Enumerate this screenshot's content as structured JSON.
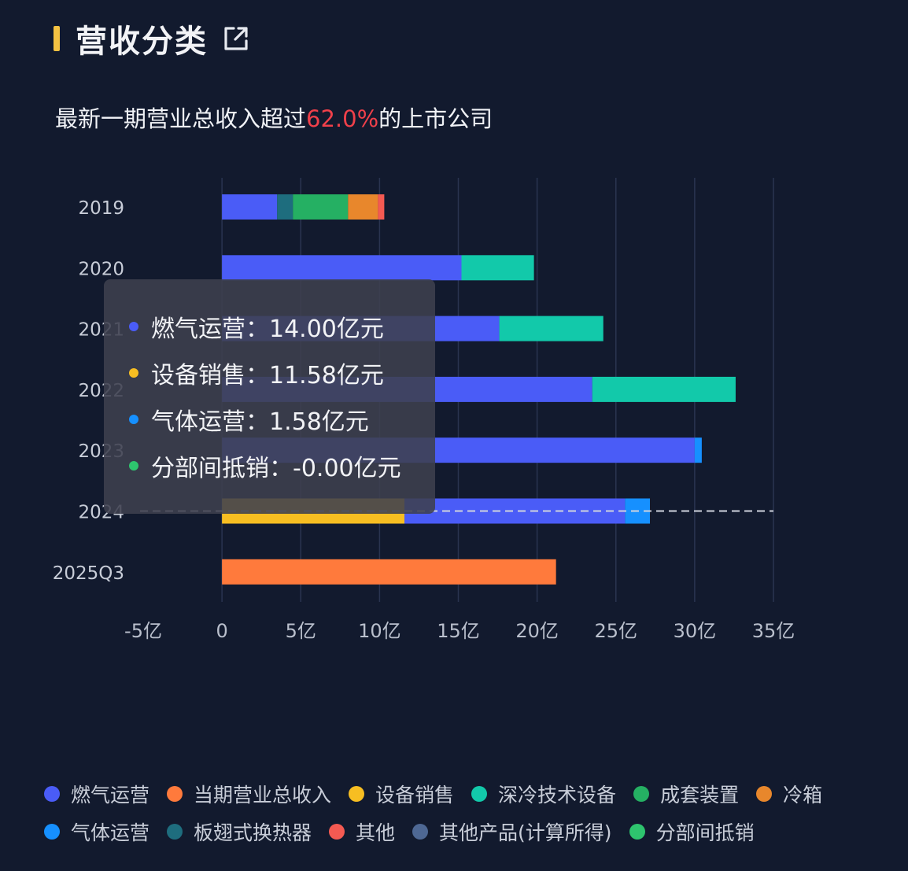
{
  "header": {
    "title": "营收分类"
  },
  "subtitle": {
    "prefix": "最新一期营业总收入超过",
    "highlight": "62.0%",
    "suffix": "的上市公司"
  },
  "colors": {
    "燃气运营": "#4a5cf7",
    "当期营业总收入": "#ff7a3c",
    "设备销售": "#f7be22",
    "深冷技术设备": "#12c9aa",
    "成套装置": "#25b063",
    "冷箱": "#e8872c",
    "气体运营": "#1690ff",
    "板翅式换热器": "#1e6d7e",
    "其他": "#f45a52",
    "其他产品(计算所得)": "#4e6894",
    "分部间抵销": "#2ec46e"
  },
  "chart_data": {
    "type": "bar",
    "orientation": "horizontal",
    "stacked": true,
    "categories": [
      "2019",
      "2020",
      "2021",
      "2022",
      "2023",
      "2024",
      "2025Q3"
    ],
    "xlim": [
      -5,
      35
    ],
    "x_ticks": [
      -5,
      0,
      5,
      10,
      15,
      20,
      25,
      30,
      35
    ],
    "x_tick_labels": [
      "-5亿",
      "0",
      "5亿",
      "10亿",
      "15亿",
      "20亿",
      "25亿",
      "30亿",
      "35亿"
    ],
    "series": [
      {
        "name": "设备销售",
        "values": [
          0,
          0,
          0,
          0,
          0,
          11.58,
          0
        ]
      },
      {
        "name": "燃气运营",
        "values": [
          3.5,
          15.2,
          17.6,
          23.5,
          30.0,
          14.0,
          0
        ]
      },
      {
        "name": "深冷技术设备",
        "values": [
          0,
          4.6,
          6.6,
          9.1,
          0,
          0,
          0
        ]
      },
      {
        "name": "板翅式换热器",
        "values": [
          1.0,
          0,
          0,
          0,
          0,
          0,
          0
        ]
      },
      {
        "name": "成套装置",
        "values": [
          3.5,
          0,
          0,
          0,
          0,
          0,
          0
        ]
      },
      {
        "name": "冷箱",
        "values": [
          1.9,
          0,
          0,
          0,
          0,
          0,
          0
        ]
      },
      {
        "name": "其他",
        "values": [
          0.4,
          0,
          0,
          0,
          0,
          0,
          0
        ]
      },
      {
        "name": "气体运营",
        "values": [
          0,
          0,
          0,
          0,
          0.45,
          1.58,
          0
        ]
      },
      {
        "name": "当期营业总收入",
        "values": [
          0,
          0,
          0,
          0,
          0,
          0,
          21.2
        ]
      }
    ],
    "highlight_category": "2024"
  },
  "tooltip": {
    "rows": [
      {
        "series": "燃气运营",
        "text": "燃气运营：14.00亿元"
      },
      {
        "series": "设备销售",
        "text": "设备销售：11.58亿元"
      },
      {
        "series": "气体运营",
        "text": "气体运营：1.58亿元"
      },
      {
        "series": "分部间抵销",
        "text": "分部间抵销：-0.00亿元"
      }
    ]
  },
  "legend": {
    "rows": [
      [
        "燃气运营",
        "当期营业总收入",
        "设备销售",
        "深冷技术设备",
        "成套装置",
        "冷箱"
      ],
      [
        "气体运营",
        "板翅式换热器",
        "其他",
        "其他产品(计算所得)",
        "分部间抵销"
      ]
    ]
  }
}
